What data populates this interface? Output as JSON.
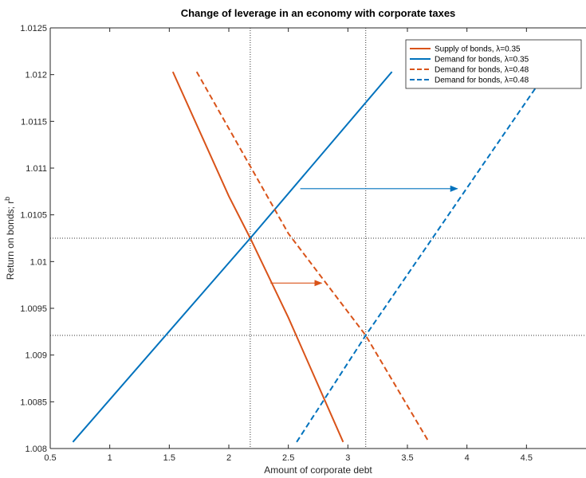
{
  "chart_data": {
    "type": "line",
    "title": "Change of leverage in an economy with corporate taxes",
    "xlabel": "Amount of corporate debt",
    "ylabel_main": "Return on bonds; r",
    "ylabel_sup": "b",
    "xlim": [
      0.5,
      5.0
    ],
    "ylim": [
      1.008,
      1.0125
    ],
    "xticks": [
      0.5,
      1,
      1.5,
      2,
      2.5,
      3,
      3.5,
      4,
      4.5
    ],
    "xtick_labels": [
      "0.5",
      "1",
      "1.5",
      "2",
      "2.5",
      "3",
      "3.5",
      "4",
      "4.5"
    ],
    "yticks": [
      1.008,
      1.0085,
      1.009,
      1.0095,
      1.01,
      1.0105,
      1.011,
      1.0115,
      1.012,
      1.0125
    ],
    "ytick_labels": [
      "1.008",
      "1.0085",
      "1.009",
      "1.0095",
      "1.01",
      "1.0105",
      "1.011",
      "1.0115",
      "1.012",
      "1.0125"
    ],
    "grid": false,
    "legend_position": "top-right",
    "series": [
      {
        "name": "Supply of bonds, λ=0.35",
        "color": "#D95319",
        "dash": "solid",
        "points": [
          [
            1.53,
            1.01203
          ],
          [
            2.0,
            1.0107
          ],
          [
            2.18,
            1.01025
          ],
          [
            2.5,
            1.0094
          ],
          [
            2.96,
            1.00807
          ]
        ]
      },
      {
        "name": "Demand for bonds, λ=0.35",
        "color": "#0072BD",
        "dash": "solid",
        "points": [
          [
            0.69,
            1.00807
          ],
          [
            2.18,
            1.01025
          ],
          [
            3.37,
            1.01203
          ]
        ]
      },
      {
        "name": "Demand for bonds, λ=0.48",
        "color": "#D95319",
        "dash": "dashed",
        "points": [
          [
            1.73,
            1.01203
          ],
          [
            2.5,
            1.0103
          ],
          [
            3.15,
            1.00921
          ],
          [
            3.68,
            1.00807
          ]
        ]
      },
      {
        "name": "Demand for bonds, λ=0.48",
        "color": "#0072BD",
        "dash": "dashed",
        "points": [
          [
            2.57,
            1.00807
          ],
          [
            3.15,
            1.00921
          ],
          [
            4.67,
            1.01203
          ]
        ]
      }
    ],
    "reference_lines": {
      "vertical_x": [
        2.18,
        3.15
      ],
      "horizontal_y": [
        1.01025,
        1.00921
      ]
    },
    "annotations": [
      {
        "type": "arrow",
        "color": "#0072BD",
        "from": [
          2.6,
          1.01078
        ],
        "to": [
          3.92,
          1.01078
        ]
      },
      {
        "type": "arrow",
        "color": "#D95319",
        "from": [
          2.35,
          1.00977
        ],
        "to": [
          2.78,
          1.00977
        ]
      }
    ]
  }
}
